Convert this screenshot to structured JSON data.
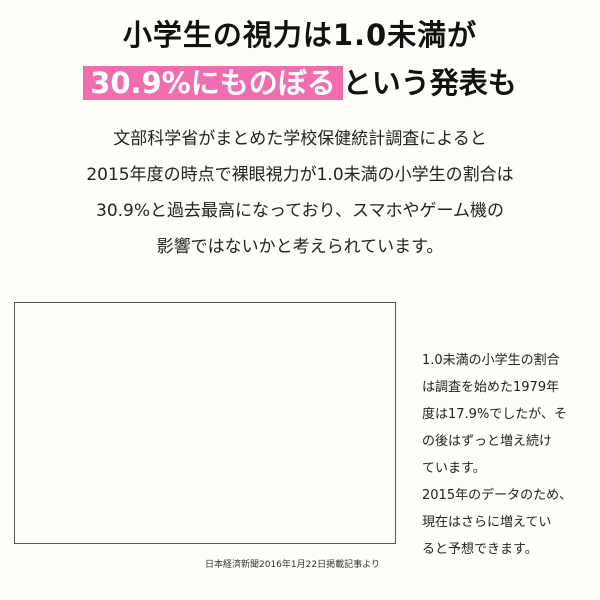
{
  "headline": {
    "line1": "小学生の視力は1.0未満が",
    "line2_highlight": "30.9%にものぼる",
    "line2_rest": "という発表も"
  },
  "paragraph": {
    "lines": [
      "文部科学省がまとめた学校保健統計調査によると",
      "2015年度の時点で裸眼視力が1.0未満の小学生の割合は",
      "30.9%と過去最高になっており、スマホやゲーム機の",
      "影響ではないかと考えられています。"
    ]
  },
  "chart_note": "日本経済新聞2016年1月22日掲載記事より",
  "side_note": {
    "lines": [
      "1.0未満の小学生の割合",
      "は調査を始めた1979年",
      "度は17.9%でしたが、そ",
      "の後はずっと増え続け",
      "ています。",
      "2015年のデータのため、",
      "現在はさらに増えてい",
      "ると予想できます。"
    ]
  }
}
